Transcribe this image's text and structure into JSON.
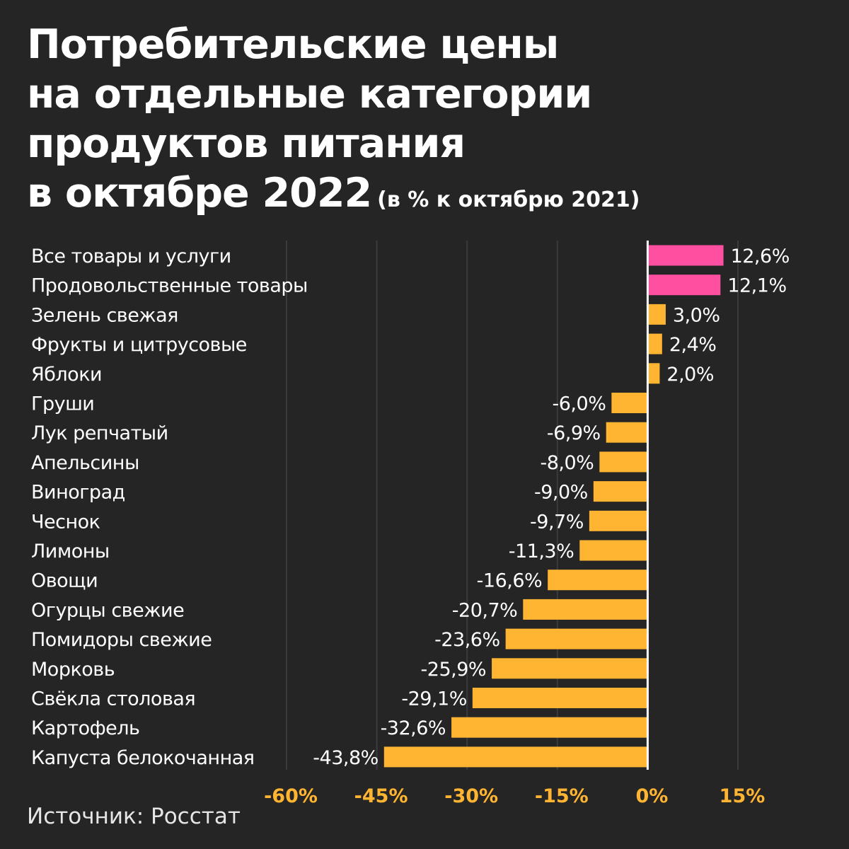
{
  "header": {
    "title_lines": [
      "Потребительские цены",
      "на отдельные категории",
      "продуктов питания",
      "в октябре 2022"
    ],
    "subtitle": "(в % к октябрю 2021)"
  },
  "footer": {
    "source": "Источник: Росстат"
  },
  "colors": {
    "background": "#252526",
    "positive_total": "#ff4fa0",
    "category_bar": "#ffb531",
    "axis_tick": "#ffb531",
    "gridline": "#3b3b3c",
    "zero_line": "#ffffff"
  },
  "chart_data": {
    "type": "bar",
    "orientation": "horizontal",
    "categories": [
      "Все товары и услуги",
      "Продовольственные товары",
      "Зелень свежая",
      "Фрукты и цитрусовые",
      "Яблоки",
      "Груши",
      "Лук репчатый",
      "Апельсины",
      "Виноград",
      "Чеснок",
      "Лимоны",
      "Овощи",
      "Огурцы свежие",
      "Помидоры свежие",
      "Морковь",
      "Свёкла столовая",
      "Картофель",
      "Капуста белокочанная"
    ],
    "values": [
      12.6,
      12.1,
      3.0,
      2.4,
      2.0,
      -6.0,
      -6.9,
      -8.0,
      -9.0,
      -9.7,
      -11.3,
      -16.6,
      -20.7,
      -23.6,
      -25.9,
      -29.1,
      -32.6,
      -43.8
    ],
    "value_labels": [
      "12,6%",
      "12,1%",
      "3,0%",
      "2,4%",
      "2,0%",
      "-6,0%",
      "-6,9%",
      "-8,0%",
      "-9,0%",
      "-9,7%",
      "-11,3%",
      "-16,6%",
      "-20,7%",
      "-23,6%",
      "-25,9%",
      "-29,1%",
      "-32,6%",
      "-43,8%"
    ],
    "highlight_categories": [
      "Все товары и услуги",
      "Продовольственные товары"
    ],
    "xlim": [
      -60,
      15
    ],
    "x_ticks": [
      -60,
      -45,
      -30,
      -15,
      0,
      15
    ],
    "x_tick_labels": [
      "-60%",
      "-45%",
      "-30%",
      "-15%",
      "0%",
      "15%"
    ],
    "grid": true,
    "legend": "none"
  }
}
